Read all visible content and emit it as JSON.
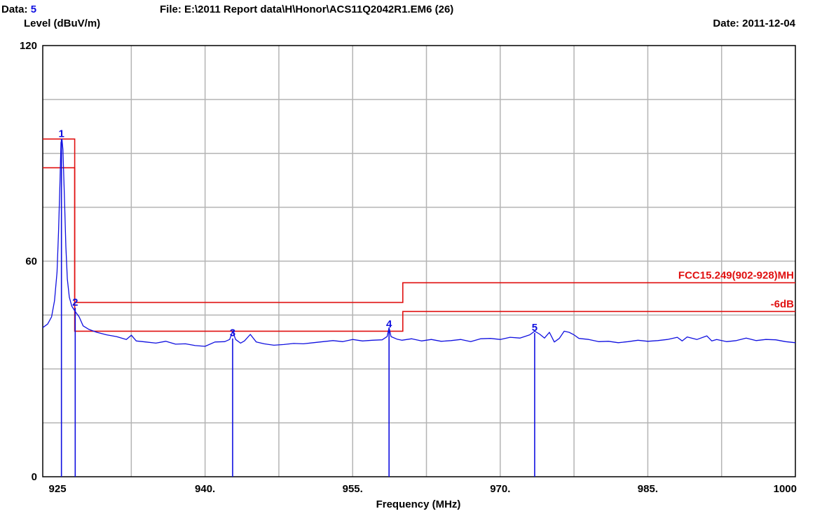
{
  "header": {
    "data_label": "Data:",
    "data_value": "5",
    "file_line": "File: E:\\2011 Report data\\H\\Honor\\ACS11Q2042R1.EM6  (26)",
    "date_line": "Date: 2011-12-04"
  },
  "colors": {
    "trace": "#1010e0",
    "limit": "#e01010",
    "grid": "#b4b4b4"
  },
  "chart_data": {
    "type": "line",
    "ylabel": "Level (dBuV/m)",
    "xlabel": "Frequency (MHz)",
    "xlim": [
      923.5,
      1000
    ],
    "ylim": [
      0,
      120
    ],
    "grid": true,
    "x_ticks": [
      {
        "value": 925,
        "label": "925"
      },
      {
        "value": 940,
        "label": "940."
      },
      {
        "value": 955,
        "label": "955."
      },
      {
        "value": 970,
        "label": "970."
      },
      {
        "value": 985,
        "label": "985."
      },
      {
        "value": 1000,
        "label": "1000"
      }
    ],
    "y_ticks": [
      {
        "value": 0,
        "label": "0"
      },
      {
        "value": 60,
        "label": "60"
      },
      {
        "value": 120,
        "label": "120"
      }
    ],
    "limit_lines": [
      {
        "name": "FCC15.249(902-928)MH",
        "points": [
          [
            923.5,
            94
          ],
          [
            926.75,
            94
          ],
          [
            926.75,
            48.5
          ],
          [
            960.1,
            48.5
          ],
          [
            960.1,
            54
          ],
          [
            1000,
            54
          ]
        ]
      },
      {
        "name": "-6dB",
        "points": [
          [
            923.5,
            86
          ],
          [
            926.75,
            86
          ],
          [
            926.75,
            40.5
          ],
          [
            960.1,
            40.5
          ],
          [
            960.1,
            46
          ],
          [
            1000,
            46
          ]
        ]
      }
    ],
    "markers": [
      {
        "label": "1",
        "x": 925.4,
        "y": 94
      },
      {
        "label": "2",
        "x": 926.8,
        "y": 47
      },
      {
        "label": "3",
        "x": 942.8,
        "y": 38.5
      },
      {
        "label": "4",
        "x": 958.7,
        "y": 41
      },
      {
        "label": "5",
        "x": 973.5,
        "y": 40
      }
    ],
    "series": [
      {
        "values": [
          [
            923.5,
            41.5
          ],
          [
            924.0,
            42.5
          ],
          [
            924.4,
            44.5
          ],
          [
            924.7,
            49
          ],
          [
            924.95,
            57
          ],
          [
            925.1,
            68
          ],
          [
            925.25,
            82
          ],
          [
            925.35,
            93
          ],
          [
            925.45,
            94
          ],
          [
            925.55,
            91
          ],
          [
            925.7,
            78
          ],
          [
            925.85,
            64
          ],
          [
            926.0,
            55
          ],
          [
            926.2,
            50
          ],
          [
            926.45,
            47.5
          ],
          [
            926.8,
            46
          ],
          [
            927.2,
            44.5
          ],
          [
            927.6,
            42
          ],
          [
            928.2,
            41
          ],
          [
            929.0,
            40.2
          ],
          [
            930.0,
            39.5
          ],
          [
            931.0,
            39
          ],
          [
            932.0,
            38.2
          ],
          [
            932.5,
            39.4
          ],
          [
            933.0,
            37.8
          ],
          [
            934.0,
            37.5
          ],
          [
            935.0,
            37.2
          ],
          [
            936.0,
            37.7
          ],
          [
            937.0,
            36.9
          ],
          [
            938.0,
            37
          ],
          [
            939.0,
            36.5
          ],
          [
            940.0,
            36.3
          ],
          [
            941.0,
            37.5
          ],
          [
            942.0,
            37.6
          ],
          [
            942.5,
            38.2
          ],
          [
            942.8,
            40.5
          ],
          [
            943.1,
            38.2
          ],
          [
            943.6,
            37.2
          ],
          [
            944.0,
            37.8
          ],
          [
            944.6,
            39.6
          ],
          [
            945.2,
            37.5
          ],
          [
            946.0,
            37
          ],
          [
            947.0,
            36.6
          ],
          [
            948.0,
            36.8
          ],
          [
            949.0,
            37.1
          ],
          [
            950.0,
            37
          ],
          [
            951.0,
            37.3
          ],
          [
            952.0,
            37.6
          ],
          [
            953.0,
            37.9
          ],
          [
            954.0,
            37.6
          ],
          [
            955.0,
            38.2
          ],
          [
            956.0,
            37.8
          ],
          [
            957.0,
            38
          ],
          [
            958.0,
            38.1
          ],
          [
            958.5,
            39
          ],
          [
            958.7,
            41.5
          ],
          [
            958.9,
            39
          ],
          [
            959.5,
            38.3
          ],
          [
            960.0,
            38
          ],
          [
            961.0,
            38.4
          ],
          [
            962.0,
            37.8
          ],
          [
            963.0,
            38.2
          ],
          [
            964.0,
            37.7
          ],
          [
            965.0,
            37.9
          ],
          [
            966.0,
            38.2
          ],
          [
            967.0,
            37.6
          ],
          [
            968.0,
            38.4
          ],
          [
            969.0,
            38.5
          ],
          [
            970.0,
            38.2
          ],
          [
            971.0,
            38.8
          ],
          [
            972.0,
            38.6
          ],
          [
            973.0,
            39.5
          ],
          [
            973.5,
            40.5
          ],
          [
            974.0,
            39.7
          ],
          [
            974.5,
            38.6
          ],
          [
            975.0,
            40.2
          ],
          [
            975.5,
            37.5
          ],
          [
            976.0,
            38.5
          ],
          [
            976.5,
            40.5
          ],
          [
            977.0,
            40.2
          ],
          [
            977.5,
            39.5
          ],
          [
            978.0,
            38.5
          ],
          [
            979.0,
            38.2
          ],
          [
            980.0,
            37.6
          ],
          [
            981.0,
            37.7
          ],
          [
            982.0,
            37.3
          ],
          [
            983.0,
            37.6
          ],
          [
            984.0,
            38
          ],
          [
            985.0,
            37.7
          ],
          [
            986.0,
            37.9
          ],
          [
            987.0,
            38.2
          ],
          [
            988.0,
            38.8
          ],
          [
            988.5,
            37.8
          ],
          [
            989.0,
            38.9
          ],
          [
            990.0,
            38.2
          ],
          [
            991.0,
            39.2
          ],
          [
            991.5,
            37.8
          ],
          [
            992.0,
            38.2
          ],
          [
            993.0,
            37.6
          ],
          [
            994.0,
            37.9
          ],
          [
            995.0,
            38.6
          ],
          [
            996.0,
            37.9
          ],
          [
            997.0,
            38.2
          ],
          [
            998.0,
            38.1
          ],
          [
            999.0,
            37.6
          ],
          [
            1000.0,
            37.3
          ]
        ]
      }
    ]
  }
}
